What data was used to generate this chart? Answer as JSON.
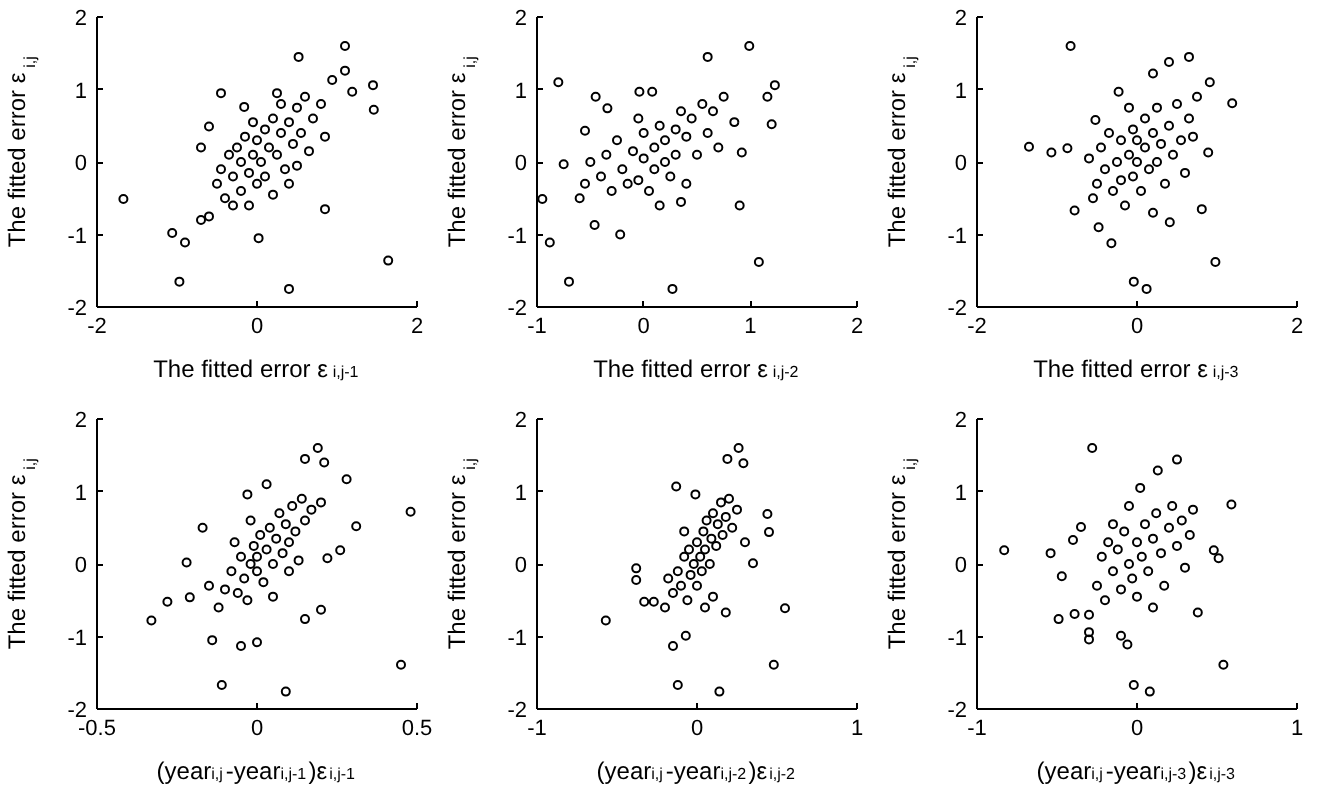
{
  "chart_data": [
    {
      "type": "scatter",
      "xlabel": "The fitted error ε$_{i,j-1}$",
      "ylabel": "The fitted error ε$_{i,j}$",
      "marker": "circle",
      "xlim": [
        -2,
        2
      ],
      "ylim": [
        -2,
        2
      ],
      "xticks": [
        -2,
        0,
        2
      ],
      "yticks": [
        -2,
        -1,
        0,
        1,
        2
      ],
      "series": [
        {
          "color": "#000000",
          "x": [
            -1.67,
            -0.97,
            -1.06,
            -0.9,
            0.4,
            0.02,
            1.64,
            1.1,
            1.45,
            1.46,
            0.52,
            1.1,
            1.19,
            -0.45,
            -0.6,
            0.85,
            -0.7,
            0.94,
            -0.16,
            -0.5,
            -0.45,
            -0.4,
            -0.35,
            -0.3,
            -0.3,
            -0.25,
            -0.2,
            -0.2,
            -0.15,
            -0.1,
            -0.1,
            -0.05,
            0.0,
            0.0,
            0.05,
            0.1,
            0.1,
            0.15,
            0.2,
            0.2,
            0.25,
            0.3,
            0.3,
            0.35,
            0.4,
            0.45,
            0.5,
            0.55,
            0.6,
            0.65,
            0.7,
            0.8,
            0.85,
            -0.6,
            -0.7,
            0.4,
            0.25,
            -0.05,
            0.5
          ],
          "values": [
            -0.51,
            -1.65,
            -0.98,
            -1.11,
            -1.75,
            -1.05,
            -1.36,
            1.6,
            1.06,
            0.72,
            1.45,
            1.26,
            0.97,
            0.95,
            0.49,
            -0.65,
            0.2,
            1.13,
            0.76,
            -0.3,
            -0.1,
            -0.5,
            0.1,
            -0.2,
            -0.6,
            0.2,
            -0.4,
            0.0,
            0.35,
            -0.15,
            -0.6,
            0.1,
            0.3,
            -0.3,
            0.0,
            0.45,
            -0.2,
            0.2,
            -0.45,
            0.6,
            0.1,
            0.4,
            0.8,
            -0.1,
            0.55,
            0.25,
            0.75,
            0.4,
            0.9,
            0.15,
            0.6,
            0.8,
            0.35,
            -0.75,
            -0.8,
            -0.3,
            0.95,
            0.55,
            -0.05
          ]
        }
      ]
    },
    {
      "type": "scatter",
      "xlabel": "The fitted error ε$_{i,j-2}$",
      "ylabel": "The fitted error ε$_{i,j}$",
      "marker": "circle",
      "xlim": [
        -1,
        2
      ],
      "ylim": [
        -2,
        2
      ],
      "xticks": [
        -1,
        0,
        1,
        2
      ],
      "yticks": [
        -2,
        -1,
        0,
        1,
        2
      ],
      "series": [
        {
          "color": "#000000",
          "x": [
            -0.95,
            -0.88,
            -0.7,
            -0.8,
            0.27,
            1.08,
            0.99,
            1.23,
            1.2,
            1.16,
            0.6,
            0.9,
            -0.45,
            -0.34,
            -0.04,
            0.08,
            -0.75,
            -0.55,
            -0.22,
            -0.46,
            0.92,
            -0.4,
            -0.35,
            -0.3,
            -0.25,
            -0.2,
            -0.15,
            -0.1,
            -0.05,
            0.0,
            0.0,
            0.05,
            0.1,
            0.1,
            0.15,
            0.2,
            0.2,
            0.25,
            0.3,
            0.3,
            0.35,
            0.4,
            0.4,
            0.45,
            0.5,
            0.55,
            0.6,
            0.65,
            0.7,
            0.75,
            -0.5,
            -0.6,
            -0.55,
            0.15,
            0.35,
            -0.05,
            0.85
          ],
          "values": [
            -0.51,
            -1.11,
            -1.65,
            1.1,
            -1.75,
            -1.38,
            1.6,
            1.06,
            0.52,
            0.9,
            1.45,
            -0.6,
            0.9,
            0.74,
            0.97,
            0.97,
            -0.03,
            0.43,
            -1.0,
            -0.87,
            0.13,
            -0.2,
            0.1,
            -0.4,
            0.3,
            -0.1,
            -0.3,
            0.15,
            -0.25,
            0.05,
            0.4,
            -0.4,
            0.2,
            -0.1,
            0.5,
            0.0,
            0.3,
            -0.2,
            0.45,
            0.1,
            0.7,
            -0.3,
            0.35,
            0.6,
            0.1,
            0.8,
            0.4,
            0.7,
            0.2,
            0.9,
            0.0,
            -0.5,
            -0.3,
            -0.6,
            -0.55,
            0.6,
            0.55
          ]
        }
      ]
    },
    {
      "type": "scatter",
      "xlabel": "The fitted error ε$_{i,j-3}$",
      "ylabel": "The fitted error ε$_{i,j}$",
      "marker": "circle",
      "xlim": [
        -2,
        2
      ],
      "ylim": [
        -2,
        2
      ],
      "xticks": [
        -2,
        0,
        2
      ],
      "yticks": [
        -2,
        -1,
        0,
        1,
        2
      ],
      "series": [
        {
          "color": "#000000",
          "x": [
            -0.83,
            -1.35,
            -1.07,
            -0.87,
            -0.04,
            0.12,
            0.98,
            1.19,
            0.65,
            0.4,
            0.91,
            0.81,
            -0.32,
            -0.48,
            -0.78,
            0.2,
            -0.23,
            0.41,
            0.89,
            -0.52,
            -0.5,
            -0.45,
            -0.4,
            -0.35,
            -0.3,
            -0.25,
            -0.2,
            -0.2,
            -0.15,
            -0.1,
            -0.05,
            -0.05,
            0.0,
            0.0,
            0.05,
            0.1,
            0.1,
            0.15,
            0.2,
            0.25,
            0.25,
            0.3,
            0.35,
            0.4,
            0.45,
            0.5,
            0.55,
            0.6,
            0.65,
            0.7,
            -0.6,
            -0.55,
            0.2,
            -0.1,
            0.75
          ],
          "values": [
            1.6,
            0.21,
            0.13,
            0.19,
            -1.65,
            -1.75,
            -1.38,
            0.81,
            1.45,
            1.38,
            1.1,
            -0.65,
            -1.12,
            -0.9,
            -0.67,
            1.22,
            0.97,
            -0.83,
            0.13,
            0.58,
            -0.3,
            0.2,
            -0.1,
            0.4,
            -0.4,
            0.0,
            0.3,
            -0.25,
            -0.6,
            0.1,
            0.45,
            -0.2,
            0.0,
            0.3,
            -0.4,
            0.2,
            0.6,
            -0.1,
            0.4,
            0.0,
            0.75,
            0.25,
            -0.3,
            0.5,
            0.1,
            0.8,
            0.3,
            -0.15,
            0.6,
            0.35,
            0.05,
            -0.5,
            -0.7,
            0.75,
            0.9
          ]
        }
      ]
    },
    {
      "type": "scatter",
      "xlabel": "(year$_{i,j}$-year$_{i,j-1}$)ε$_{i,j-1}$",
      "ylabel": "The fitted error ε$_{i,j}$",
      "marker": "circle",
      "xlim": [
        -0.5,
        0.5
      ],
      "ylim": [
        -2,
        2
      ],
      "xticks": [
        -0.5,
        0,
        0.5
      ],
      "yticks": [
        -2,
        -1,
        0,
        1,
        2
      ],
      "series": [
        {
          "color": "#000000",
          "x": [
            -0.33,
            -0.28,
            -0.11,
            0.09,
            0.45,
            0.48,
            0.19,
            0.21,
            0.15,
            0.28,
            0.31,
            0.26,
            -0.17,
            -0.22,
            -0.21,
            -0.14,
            -0.05,
            0.0,
            -0.03,
            0.03,
            0.15,
            0.2,
            0.22,
            -0.1,
            -0.08,
            -0.06,
            -0.05,
            -0.04,
            -0.03,
            -0.02,
            -0.01,
            0.0,
            0.0,
            0.01,
            0.02,
            0.03,
            0.04,
            0.05,
            0.06,
            0.07,
            0.08,
            0.09,
            0.1,
            0.11,
            0.12,
            0.14,
            0.15,
            0.17,
            -0.12,
            -0.15,
            -0.07,
            0.05,
            0.1,
            0.2,
            -0.02,
            0.13
          ],
          "values": [
            -0.78,
            -0.52,
            -1.67,
            -1.76,
            -1.39,
            0.72,
            1.6,
            1.4,
            1.45,
            1.17,
            0.52,
            0.19,
            0.5,
            0.02,
            -0.46,
            -1.05,
            -1.13,
            -1.08,
            0.96,
            1.1,
            -0.76,
            -0.63,
            0.08,
            -0.35,
            -0.1,
            -0.4,
            0.1,
            -0.2,
            -0.5,
            0.0,
            0.25,
            -0.1,
            0.1,
            0.4,
            -0.25,
            0.2,
            0.5,
            0.0,
            0.35,
            0.7,
            0.15,
            0.55,
            0.3,
            0.8,
            0.45,
            0.9,
            0.6,
            0.75,
            -0.6,
            -0.3,
            0.3,
            -0.45,
            -0.1,
            0.85,
            0.6,
            0.05
          ]
        }
      ]
    },
    {
      "type": "scatter",
      "xlabel": "(year$_{i,j}$-year$_{i,j-2}$)ε$_{i,j-2}$",
      "ylabel": "The fitted error ε$_{i,j}$",
      "marker": "circle",
      "xlim": [
        -1,
        1
      ],
      "ylim": [
        -2,
        2
      ],
      "xticks": [
        -1,
        0,
        1
      ],
      "yticks": [
        -2,
        -1,
        0,
        1,
        2
      ],
      "series": [
        {
          "color": "#000000",
          "x": [
            -0.57,
            0.55,
            0.48,
            -0.12,
            0.14,
            0.26,
            0.19,
            0.29,
            0.44,
            0.45,
            -0.38,
            -0.38,
            -0.33,
            -0.27,
            -0.13,
            -0.15,
            -0.07,
            0.18,
            0.35,
            -0.01,
            -0.15,
            -0.12,
            -0.1,
            -0.08,
            -0.06,
            -0.05,
            -0.04,
            -0.02,
            0.0,
            0.0,
            0.02,
            0.03,
            0.04,
            0.05,
            0.06,
            0.08,
            0.09,
            0.1,
            0.12,
            0.13,
            0.15,
            0.16,
            0.18,
            0.2,
            0.22,
            0.25,
            -0.2,
            -0.18,
            0.1,
            -0.08,
            0.3,
            0.05
          ],
          "values": [
            -0.78,
            -0.61,
            -1.39,
            -1.67,
            -1.76,
            1.6,
            1.45,
            1.39,
            0.69,
            0.44,
            -0.06,
            -0.22,
            -0.52,
            -0.52,
            1.07,
            -1.13,
            -0.99,
            -0.67,
            0.01,
            0.96,
            -0.4,
            -0.1,
            -0.3,
            0.1,
            -0.5,
            0.2,
            -0.15,
            0.0,
            -0.3,
            0.3,
            0.1,
            -0.1,
            0.45,
            0.2,
            0.6,
            0.0,
            0.35,
            0.7,
            0.25,
            0.55,
            0.85,
            0.4,
            0.65,
            0.9,
            0.5,
            0.75,
            -0.6,
            -0.2,
            -0.45,
            0.45,
            0.3,
            -0.6
          ]
        }
      ]
    },
    {
      "type": "scatter",
      "xlabel": "(year$_{i,j}$-year$_{i,j-3}$)ε$_{i,j-3}$",
      "ylabel": "The fitted error ε$_{i,j}$",
      "marker": "circle",
      "xlim": [
        -1,
        1
      ],
      "ylim": [
        -2,
        2
      ],
      "xticks": [
        -1,
        0,
        1
      ],
      "yticks": [
        -2,
        -1,
        0,
        1,
        2
      ],
      "series": [
        {
          "color": "#000000",
          "x": [
            -0.83,
            -0.54,
            -0.28,
            -0.02,
            0.08,
            0.54,
            0.59,
            0.25,
            -0.49,
            -0.47,
            -0.3,
            -0.3,
            -0.39,
            0.51,
            0.48,
            0.38,
            0.13,
            0.02,
            -0.1,
            -0.06,
            -0.35,
            -0.4,
            -0.25,
            -0.22,
            -0.2,
            -0.18,
            -0.15,
            -0.12,
            -0.1,
            -0.08,
            -0.05,
            -0.03,
            0.0,
            0.0,
            0.03,
            0.05,
            0.07,
            0.1,
            0.12,
            0.15,
            0.17,
            0.2,
            0.22,
            0.25,
            0.28,
            0.3,
            0.33,
            -0.3,
            -0.15,
            0.1,
            0.35,
            -0.05
          ],
          "values": [
            0.19,
            0.15,
            1.6,
            -1.67,
            -1.76,
            -1.39,
            0.82,
            1.44,
            -0.76,
            -0.17,
            -0.94,
            -1.04,
            -0.69,
            0.08,
            0.19,
            -0.67,
            1.29,
            1.05,
            -0.99,
            -1.11,
            0.51,
            0.33,
            -0.3,
            0.1,
            -0.5,
            0.3,
            -0.1,
            0.2,
            -0.35,
            0.45,
            0.0,
            -0.2,
            0.3,
            -0.45,
            0.1,
            0.55,
            -0.1,
            0.35,
            0.7,
            0.15,
            -0.3,
            0.5,
            0.8,
            0.25,
            0.6,
            -0.05,
            0.4,
            -0.7,
            0.55,
            -0.6,
            0.75,
            0.8
          ]
        }
      ]
    }
  ]
}
